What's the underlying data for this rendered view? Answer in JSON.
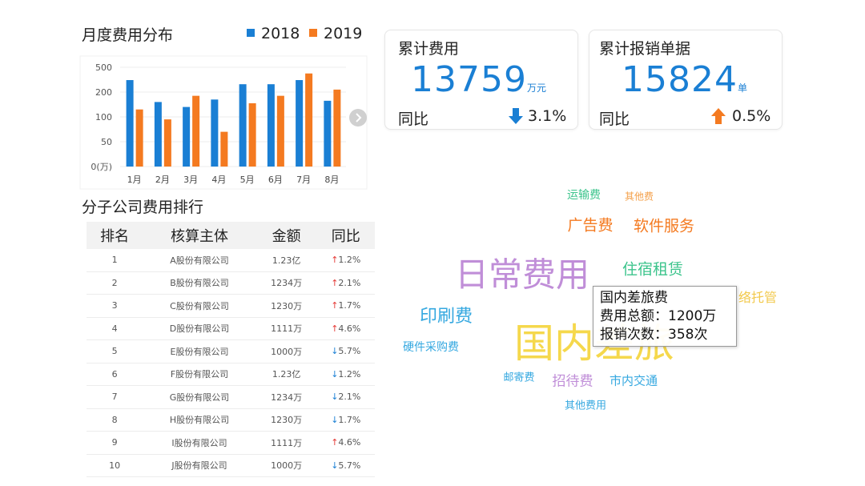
{
  "chart_data": {
    "type": "bar",
    "title": "月度费用分布",
    "categories": [
      "1月",
      "2月",
      "3月",
      "4月",
      "5月",
      "6月",
      "7月",
      "8月"
    ],
    "series": [
      {
        "name": "2018",
        "color": "#1a7fd4",
        "values": [
          345,
          160,
          140,
          170,
          295,
          295,
          345,
          165
        ]
      },
      {
        "name": "2019",
        "color": "#f47a20",
        "values": [
          130,
          95,
          185,
          70,
          155,
          185,
          425,
          230
        ]
      }
    ],
    "ylim": [
      0,
      500
    ],
    "yticks": [
      {
        "value": 0,
        "label": "0(万)"
      },
      50,
      100,
      200,
      500
    ],
    "scale": "piecewise",
    "grid": true
  },
  "kpis": [
    {
      "title": "累计费用",
      "value": "13759",
      "unit": "万元",
      "compare_label": "同比",
      "change": "3.1%"
    },
    {
      "title": "累计报销单据",
      "value": "15824",
      "unit": "单",
      "compare_label": "同比",
      "change": "0.5%"
    }
  ],
  "table": {
    "title": "分子公司费用排行",
    "header": [
      "排名",
      "核算主体",
      "金额",
      "同比"
    ],
    "rows": [
      [
        "1",
        "A股份有限公司",
        "1.23亿",
        "↑1.2%"
      ],
      [
        "2",
        "B股份有限公司",
        "1234万",
        "↑2.1%"
      ],
      [
        "3",
        "C股份有限公司",
        "1230万",
        "↑1.7%"
      ],
      [
        "4",
        "D股份有限公司",
        "1111万",
        "↑4.6%"
      ],
      [
        "5",
        "E股份有限公司",
        "1000万",
        "↓5.7%"
      ],
      [
        "6",
        "F股份有限公司",
        "1.23亿",
        "↓1.2%"
      ],
      [
        "7",
        "G股份有限公司",
        "1234万",
        "↓2.1%"
      ],
      [
        "8",
        "H股份有限公司",
        "1230万",
        "↓1.7%"
      ],
      [
        "9",
        "I股份有限公司",
        "1111万",
        "↑4.6%"
      ],
      [
        "10",
        "J股份有限公司",
        "1000万",
        "↓5.7%"
      ]
    ]
  },
  "word_cloud": {
    "words": [
      "运输费",
      "其他费",
      "广告费",
      "软件服务",
      "日常费用",
      "住宿租赁",
      "络托管",
      "印刷费",
      "国内差旅",
      "硬件采购费",
      "邮寄费",
      "招待费",
      "市内交通",
      "其他费用"
    ],
    "tooltip": {
      "title": "国内差旅费",
      "lines": [
        "费用总额：1200万",
        "报销次数：358次"
      ]
    }
  }
}
